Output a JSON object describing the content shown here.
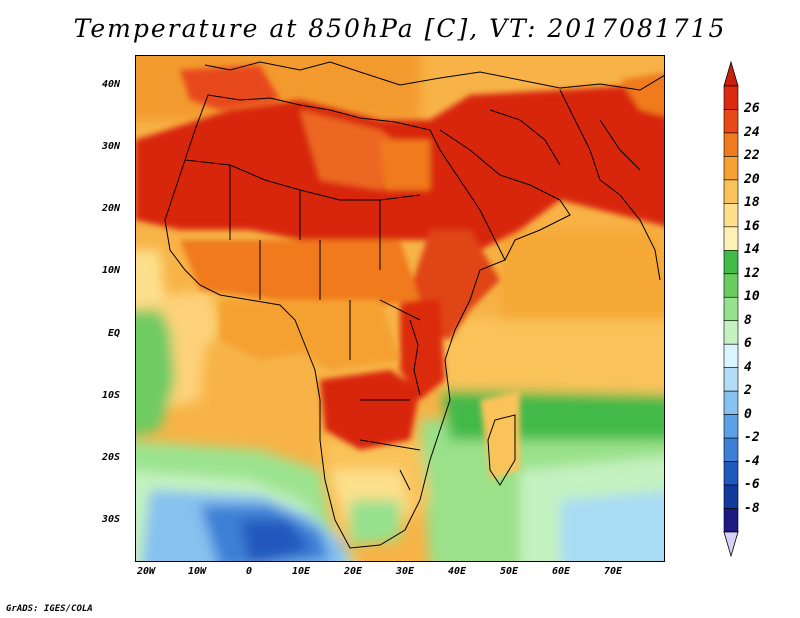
{
  "title": "Temperature at 850hPa [C], VT: 2017081715",
  "credit": "GrADS: IGES/COLA",
  "lat_ticks": [
    "40N",
    "30N",
    "20N",
    "10N",
    "EQ",
    "10S",
    "20S",
    "30S"
  ],
  "lon_ticks": [
    "20W",
    "10W",
    "0",
    "10E",
    "20E",
    "30E",
    "40E",
    "50E",
    "60E",
    "70E"
  ],
  "colorbar": {
    "labels": [
      "26",
      "24",
      "22",
      "20",
      "18",
      "16",
      "14",
      "12",
      "10",
      "8",
      "6",
      "4",
      "2",
      "0",
      "-2",
      "-4",
      "-6",
      "-8"
    ],
    "colors": [
      "#dc2a10",
      "#e8481a",
      "#f07a1e",
      "#f5a133",
      "#f9c35a",
      "#fde08c",
      "#fdf2b4",
      "#43b94a",
      "#68cc61",
      "#96e18d",
      "#c4f2c0",
      "#d9f5ff",
      "#b3dcf7",
      "#86c1f0",
      "#5aa2e5",
      "#3c80d6",
      "#2058bd",
      "#123a9e",
      "#1c1980"
    ],
    "top_arrow_color": "#c8200b",
    "bottom_arrow_color": "#d6d1f6"
  },
  "map": {
    "ocean_colors": {
      "atlantic_north": "#f7b347",
      "atlantic_eq": "#7fd572",
      "atlantic_south": "#74c4ef",
      "indian_north": "#f5a836",
      "indian_south": "#9ae189"
    },
    "land_hot_color": "#d8260e"
  }
}
